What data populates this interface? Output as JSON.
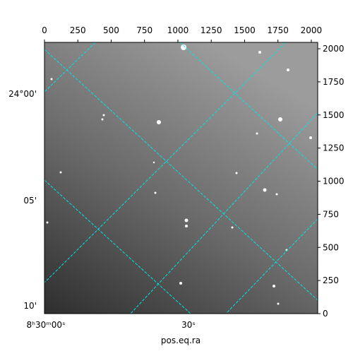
{
  "chart_data": {
    "type": "image",
    "xlabel": "pos.eq.ra",
    "xlim": [
      0,
      2048
    ],
    "ylim": [
      0,
      2048
    ],
    "xticks": [
      0,
      250,
      500,
      750,
      1000,
      1250,
      1500,
      1750,
      2000
    ],
    "yticks": [
      0,
      250,
      500,
      750,
      1000,
      1250,
      1500,
      1750,
      2000
    ],
    "ra_ticks": [
      "8ʰ30ᵐ00ˢ",
      "30ˢ"
    ],
    "dec_ticks": [
      "24°00'",
      "05'",
      "10'"
    ]
  }
}
